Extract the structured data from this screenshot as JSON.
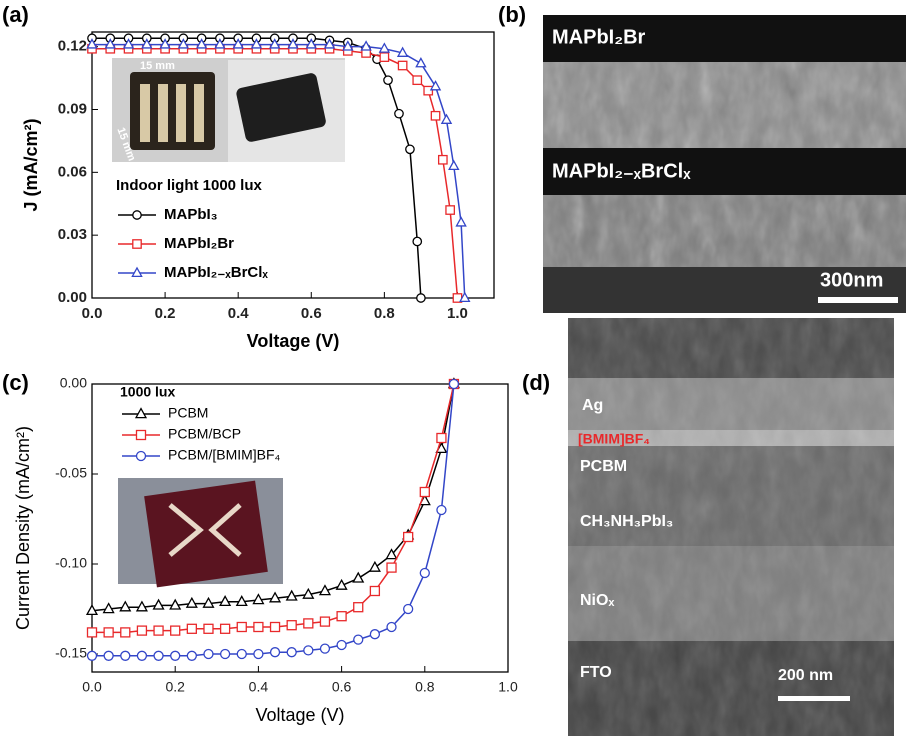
{
  "chart_data": [
    {
      "type": "line",
      "panel_label": "(a)",
      "xlabel": "Voltage (V)",
      "ylabel": "J (mA/cm²)",
      "annotation": "Indoor light 1000 lux",
      "inset_labels": [
        "15 mm",
        "15 mm"
      ],
      "xlim": [
        0,
        1.1
      ],
      "ylim": [
        0,
        0.127
      ],
      "xticks": [
        {
          "value": 0,
          "label": "0.0"
        },
        {
          "value": 0.2,
          "label": "0.2"
        },
        {
          "value": 0.4,
          "label": "0.4"
        },
        {
          "value": 0.6,
          "label": "0.6"
        },
        {
          "value": 0.8,
          "label": "0.8"
        },
        {
          "value": 1.0,
          "label": "1.0"
        }
      ],
      "yticks": [
        {
          "value": 0,
          "label": "0.00"
        },
        {
          "value": 0.03,
          "label": "0.03"
        },
        {
          "value": 0.06,
          "label": "0.06"
        },
        {
          "value": 0.09,
          "label": "0.09"
        },
        {
          "value": 0.12,
          "label": "0.12"
        }
      ],
      "series": [
        {
          "name": "MAPbI₃",
          "color": "#000000",
          "marker": "circle",
          "x": [
            0,
            0.05,
            0.1,
            0.15,
            0.2,
            0.25,
            0.3,
            0.35,
            0.4,
            0.45,
            0.5,
            0.55,
            0.6,
            0.65,
            0.7,
            0.75,
            0.78,
            0.81,
            0.84,
            0.87,
            0.89,
            0.9
          ],
          "values": [
            0.124,
            0.124,
            0.124,
            0.124,
            0.124,
            0.124,
            0.124,
            0.124,
            0.124,
            0.124,
            0.124,
            0.124,
            0.124,
            0.123,
            0.122,
            0.119,
            0.114,
            0.104,
            0.088,
            0.071,
            0.027,
            0
          ]
        },
        {
          "name": "MAPbI₂Br",
          "color": "#e8292b",
          "marker": "square",
          "x": [
            0,
            0.05,
            0.1,
            0.15,
            0.2,
            0.25,
            0.3,
            0.35,
            0.4,
            0.45,
            0.5,
            0.55,
            0.6,
            0.65,
            0.7,
            0.75,
            0.8,
            0.85,
            0.89,
            0.92,
            0.94,
            0.96,
            0.98,
            1.0
          ],
          "values": [
            0.119,
            0.119,
            0.119,
            0.119,
            0.119,
            0.119,
            0.119,
            0.119,
            0.119,
            0.119,
            0.119,
            0.119,
            0.119,
            0.119,
            0.118,
            0.117,
            0.115,
            0.111,
            0.104,
            0.099,
            0.087,
            0.066,
            0.042,
            0
          ]
        },
        {
          "name": "MAPbI₂₋ₓBrClₓ",
          "color": "#3346c8",
          "marker": "triangle",
          "x": [
            0,
            0.05,
            0.1,
            0.15,
            0.2,
            0.25,
            0.3,
            0.35,
            0.4,
            0.45,
            0.5,
            0.55,
            0.6,
            0.65,
            0.7,
            0.75,
            0.8,
            0.85,
            0.9,
            0.94,
            0.97,
            0.99,
            1.01,
            1.02
          ],
          "values": [
            0.121,
            0.121,
            0.121,
            0.121,
            0.121,
            0.121,
            0.121,
            0.121,
            0.121,
            0.121,
            0.121,
            0.121,
            0.121,
            0.121,
            0.12,
            0.12,
            0.119,
            0.117,
            0.112,
            0.101,
            0.085,
            0.063,
            0.036,
            0
          ]
        }
      ]
    },
    {
      "type": "line",
      "panel_label": "(c)",
      "xlabel": "Voltage (V)",
      "ylabel": "Current Density (mA/cm²)",
      "annotation": "1000 lux",
      "xlim": [
        0,
        1.0
      ],
      "ylim": [
        -0.16,
        0
      ],
      "xticks": [
        {
          "value": 0,
          "label": "0.0"
        },
        {
          "value": 0.2,
          "label": "0.2"
        },
        {
          "value": 0.4,
          "label": "0.4"
        },
        {
          "value": 0.6,
          "label": "0.6"
        },
        {
          "value": 0.8,
          "label": "0.8"
        },
        {
          "value": 1.0,
          "label": "1.0"
        }
      ],
      "yticks": [
        {
          "value": 0,
          "label": "0.00"
        },
        {
          "value": -0.05,
          "label": "-0.05"
        },
        {
          "value": -0.1,
          "label": "-0.10"
        },
        {
          "value": -0.15,
          "label": "-0.15"
        }
      ],
      "x": [
        0,
        0.04,
        0.08,
        0.12,
        0.16,
        0.2,
        0.24,
        0.28,
        0.32,
        0.36,
        0.4,
        0.44,
        0.48,
        0.52,
        0.56,
        0.6,
        0.64,
        0.68,
        0.72,
        0.76,
        0.8,
        0.84,
        0.87
      ],
      "series": [
        {
          "name": "PCBM",
          "color": "#000000",
          "marker": "triangle",
          "values": [
            -0.126,
            -0.125,
            -0.124,
            -0.124,
            -0.123,
            -0.123,
            -0.122,
            -0.122,
            -0.121,
            -0.121,
            -0.12,
            -0.119,
            -0.118,
            -0.117,
            -0.115,
            -0.112,
            -0.108,
            -0.102,
            -0.095,
            -0.084,
            -0.065,
            -0.036,
            0
          ]
        },
        {
          "name": "PCBM/BCP",
          "color": "#e8292b",
          "marker": "square",
          "values": [
            -0.138,
            -0.138,
            -0.138,
            -0.137,
            -0.137,
            -0.137,
            -0.136,
            -0.136,
            -0.136,
            -0.135,
            -0.135,
            -0.135,
            -0.134,
            -0.133,
            -0.132,
            -0.129,
            -0.124,
            -0.115,
            -0.102,
            -0.085,
            -0.06,
            -0.03,
            0
          ]
        },
        {
          "name": "PCBM/[BMIM]BF₄",
          "color": "#3346c8",
          "marker": "circle",
          "values": [
            -0.151,
            -0.151,
            -0.151,
            -0.151,
            -0.151,
            -0.151,
            -0.151,
            -0.15,
            -0.15,
            -0.15,
            -0.15,
            -0.149,
            -0.149,
            -0.148,
            -0.147,
            -0.145,
            -0.142,
            -0.139,
            -0.135,
            -0.125,
            -0.105,
            -0.07,
            0
          ]
        }
      ]
    }
  ],
  "micrographs": [
    {
      "panel_label": "(b)",
      "labels": [
        "MAPbI₂Br",
        "MAPbI₂₋ₓBrClₓ"
      ],
      "scale_bar": "300nm"
    },
    {
      "panel_label": "(d)",
      "labels": [
        "Ag",
        "[BMIM]BF₄",
        "PCBM",
        "CH₃NH₃PbI₃",
        "NiOₓ",
        "FTO"
      ],
      "scale_bar": "200 nm"
    }
  ]
}
